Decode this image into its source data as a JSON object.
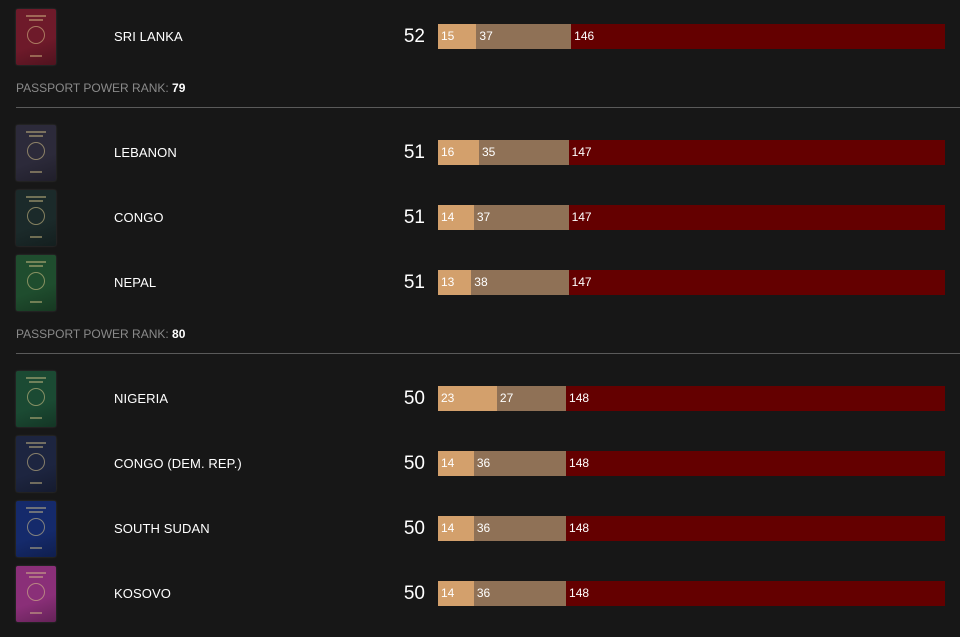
{
  "groups": [
    {
      "rank_label": "",
      "rank_value": "",
      "rows": [
        {
          "country": "SRI LANKA",
          "score": "52",
          "free": 15,
          "voa": 37,
          "req": 146,
          "passport_color": "#6e1a2a"
        }
      ]
    },
    {
      "rank_label": "PASSPORT POWER RANK:",
      "rank_value": "79",
      "rows": [
        {
          "country": "LEBANON",
          "score": "51",
          "free": 16,
          "voa": 35,
          "req": 147,
          "passport_color": "#2c2a3a"
        },
        {
          "country": "CONGO",
          "score": "51",
          "free": 14,
          "voa": 37,
          "req": 147,
          "passport_color": "#1b2a2a"
        },
        {
          "country": "NEPAL",
          "score": "51",
          "free": 13,
          "voa": 38,
          "req": 147,
          "passport_color": "#1f4d2e"
        }
      ]
    },
    {
      "rank_label": "PASSPORT POWER RANK:",
      "rank_value": "80",
      "rows": [
        {
          "country": "NIGERIA",
          "score": "50",
          "free": 23,
          "voa": 27,
          "req": 148,
          "passport_color": "#1b4a33"
        },
        {
          "country": "CONGO (DEM. REP.)",
          "score": "50",
          "free": 14,
          "voa": 36,
          "req": 148,
          "passport_color": "#1d2540"
        },
        {
          "country": "SOUTH SUDAN",
          "score": "50",
          "free": 14,
          "voa": 36,
          "req": 148,
          "passport_color": "#152a6b"
        },
        {
          "country": "KOSOVO",
          "score": "50",
          "free": 14,
          "voa": 36,
          "req": 148,
          "passport_color": "#8a2f78"
        }
      ]
    }
  ],
  "colors": {
    "visa_free": "#d3a06c",
    "visa_on_arrival": "#8f7156",
    "visa_required": "#640000",
    "background": "#171717"
  }
}
